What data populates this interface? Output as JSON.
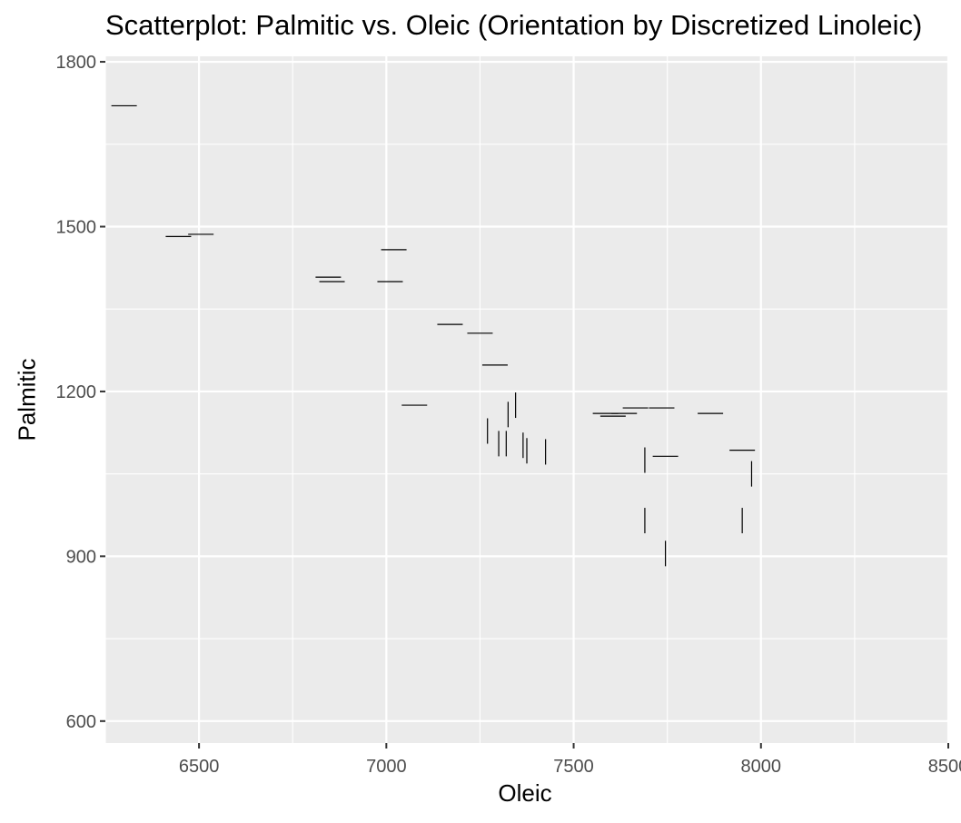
{
  "chart_data": {
    "type": "scatter",
    "title": "Scatterplot: Palmitic vs. Oleic (Orientation by Discretized Linoleic)",
    "xlabel": "Oleic",
    "ylabel": "Palmitic",
    "xlim": [
      6250,
      8500
    ],
    "ylim": [
      560,
      1810
    ],
    "x_ticks": [
      6500,
      7000,
      7500,
      8000,
      8500
    ],
    "y_ticks": [
      600,
      900,
      1200,
      1500,
      1800
    ],
    "grid": true,
    "marker": "line segment (horizontal or vertical)",
    "points": [
      {
        "x": 6300,
        "y": 1720,
        "orientation": "horizontal"
      },
      {
        "x": 6445,
        "y": 1482,
        "orientation": "horizontal"
      },
      {
        "x": 6505,
        "y": 1486,
        "orientation": "horizontal"
      },
      {
        "x": 6845,
        "y": 1408,
        "orientation": "horizontal"
      },
      {
        "x": 6855,
        "y": 1400,
        "orientation": "horizontal"
      },
      {
        "x": 7020,
        "y": 1458,
        "orientation": "horizontal"
      },
      {
        "x": 7010,
        "y": 1400,
        "orientation": "horizontal"
      },
      {
        "x": 7170,
        "y": 1322,
        "orientation": "horizontal"
      },
      {
        "x": 7250,
        "y": 1306,
        "orientation": "horizontal"
      },
      {
        "x": 7290,
        "y": 1248,
        "orientation": "horizontal"
      },
      {
        "x": 7075,
        "y": 1175,
        "orientation": "horizontal"
      },
      {
        "x": 7270,
        "y": 1128,
        "orientation": "vertical"
      },
      {
        "x": 7300,
        "y": 1105,
        "orientation": "vertical"
      },
      {
        "x": 7320,
        "y": 1105,
        "orientation": "vertical"
      },
      {
        "x": 7325,
        "y": 1158,
        "orientation": "vertical"
      },
      {
        "x": 7345,
        "y": 1175,
        "orientation": "vertical"
      },
      {
        "x": 7365,
        "y": 1102,
        "orientation": "vertical"
      },
      {
        "x": 7375,
        "y": 1092,
        "orientation": "vertical"
      },
      {
        "x": 7425,
        "y": 1090,
        "orientation": "vertical"
      },
      {
        "x": 7585,
        "y": 1160,
        "orientation": "horizontal"
      },
      {
        "x": 7605,
        "y": 1155,
        "orientation": "horizontal"
      },
      {
        "x": 7635,
        "y": 1160,
        "orientation": "horizontal"
      },
      {
        "x": 7665,
        "y": 1170,
        "orientation": "horizontal"
      },
      {
        "x": 7735,
        "y": 1170,
        "orientation": "horizontal"
      },
      {
        "x": 7690,
        "y": 1075,
        "orientation": "vertical"
      },
      {
        "x": 7745,
        "y": 1082,
        "orientation": "horizontal"
      },
      {
        "x": 7865,
        "y": 1160,
        "orientation": "horizontal"
      },
      {
        "x": 7950,
        "y": 1093,
        "orientation": "horizontal"
      },
      {
        "x": 7975,
        "y": 1050,
        "orientation": "vertical"
      },
      {
        "x": 7690,
        "y": 965,
        "orientation": "vertical"
      },
      {
        "x": 7950,
        "y": 965,
        "orientation": "vertical"
      },
      {
        "x": 7745,
        "y": 905,
        "orientation": "vertical"
      }
    ],
    "colors": {
      "panel_background": "#ebebeb",
      "grid_major": "#ffffff",
      "marker": "#000000",
      "tick_text": "#4d4d4d"
    }
  }
}
